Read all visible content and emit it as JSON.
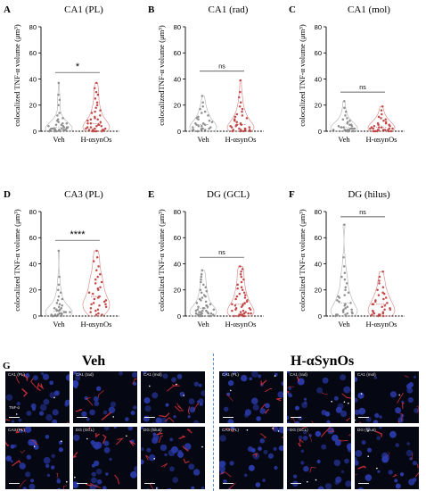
{
  "colors": {
    "veh": "#8f8f8f",
    "syn": "#c44848",
    "axis": "#000000",
    "divider": "#5b8fd0"
  },
  "chart_data": [
    {
      "type": "scatter",
      "panel_label": "A",
      "title": "CA1 (PL)",
      "ylabel": "colocalized TNF-α volume (μm³)",
      "ylim": [
        0,
        80
      ],
      "yticks": [
        0,
        20,
        40,
        60,
        80
      ],
      "categories": [
        "Veh",
        "H-αsynOs"
      ],
      "significance": "*",
      "series": [
        {
          "name": "Veh",
          "values": [
            37,
            28,
            24,
            20,
            14,
            12,
            10,
            9,
            8,
            7,
            6,
            6,
            5,
            5,
            4,
            4,
            3,
            3,
            3,
            2,
            2,
            2,
            2,
            2,
            1,
            1,
            1,
            1,
            1,
            1,
            1,
            1,
            0,
            0,
            0,
            0,
            0,
            0
          ]
        },
        {
          "name": "H-αsynOs",
          "values": [
            37,
            33,
            30,
            28,
            25,
            22,
            20,
            18,
            16,
            15,
            14,
            12,
            11,
            10,
            9,
            9,
            8,
            7,
            6,
            6,
            5,
            5,
            4,
            4,
            3,
            3,
            2,
            2,
            2,
            1,
            1,
            1,
            1,
            0,
            0,
            0,
            0,
            0
          ]
        }
      ]
    },
    {
      "type": "scatter",
      "panel_label": "B",
      "title": "CA1 (rad)",
      "ylabel": "colocalizedTNF-α volume (μm³)",
      "ylim": [
        0,
        80
      ],
      "yticks": [
        0,
        20,
        40,
        60,
        80
      ],
      "categories": [
        "Veh",
        "H-αsynOs"
      ],
      "significance": "ns",
      "series": [
        {
          "name": "Veh",
          "values": [
            27,
            22,
            19,
            17,
            15,
            14,
            12,
            11,
            10,
            9,
            8,
            7,
            6,
            6,
            5,
            5,
            4,
            4,
            3,
            3,
            2,
            2,
            2,
            1,
            1,
            1,
            1,
            0,
            0,
            0,
            0
          ]
        },
        {
          "name": "H-αsynOs",
          "values": [
            39,
            30,
            26,
            22,
            19,
            17,
            15,
            13,
            12,
            11,
            10,
            9,
            8,
            7,
            6,
            5,
            5,
            4,
            4,
            3,
            3,
            2,
            2,
            2,
            1,
            1,
            1,
            1,
            0,
            0,
            0,
            0
          ]
        }
      ]
    },
    {
      "type": "scatter",
      "panel_label": "C",
      "title": "CA1 (mol)",
      "ylabel": "colocalized TNF-α volume (μm³)",
      "ylim": [
        0,
        80
      ],
      "yticks": [
        0,
        20,
        40,
        60,
        80
      ],
      "categories": [
        "Veh",
        "H-αsynOs"
      ],
      "significance": "ns",
      "series": [
        {
          "name": "Veh",
          "values": [
            23,
            18,
            15,
            12,
            10,
            9,
            8,
            7,
            6,
            5,
            5,
            4,
            4,
            3,
            3,
            3,
            2,
            2,
            2,
            2,
            1,
            1,
            1,
            1,
            1,
            1,
            0,
            0,
            0,
            0,
            0,
            0
          ]
        },
        {
          "name": "H-αsynOs",
          "values": [
            19,
            16,
            13,
            11,
            10,
            9,
            8,
            7,
            6,
            6,
            5,
            5,
            4,
            4,
            3,
            3,
            3,
            2,
            2,
            2,
            2,
            1,
            1,
            1,
            1,
            1,
            0,
            0,
            0,
            0,
            0,
            0
          ]
        }
      ]
    },
    {
      "type": "scatter",
      "panel_label": "D",
      "title": "CA3 (PL)",
      "ylabel": "colocalized TNF-α volume (μm³)",
      "ylim": [
        0,
        80
      ],
      "yticks": [
        0,
        20,
        40,
        60,
        80
      ],
      "categories": [
        "Veh",
        "H-αsynOs"
      ],
      "significance": "****",
      "series": [
        {
          "name": "Veh",
          "values": [
            50,
            30,
            24,
            20,
            18,
            15,
            13,
            12,
            10,
            9,
            8,
            7,
            6,
            6,
            5,
            5,
            4,
            4,
            3,
            3,
            3,
            2,
            2,
            2,
            1,
            1,
            1,
            1,
            0,
            0,
            0,
            0,
            0
          ]
        },
        {
          "name": "H-αsynOs",
          "values": [
            50,
            45,
            42,
            38,
            35,
            32,
            30,
            28,
            26,
            25,
            22,
            21,
            20,
            18,
            17,
            15,
            14,
            13,
            12,
            11,
            10,
            9,
            9,
            8,
            7,
            6,
            5,
            4,
            3,
            2,
            1,
            1
          ]
        }
      ]
    },
    {
      "type": "scatter",
      "panel_label": "E",
      "title": "DG (GCL)",
      "ylabel": "colocalized TNF-α volume (μm³)",
      "ylim": [
        0,
        80
      ],
      "yticks": [
        0,
        20,
        40,
        60,
        80
      ],
      "categories": [
        "Veh",
        "H-αsynOs"
      ],
      "significance": "ns",
      "series": [
        {
          "name": "Veh",
          "values": [
            35,
            32,
            30,
            28,
            26,
            24,
            22,
            20,
            19,
            18,
            16,
            15,
            14,
            13,
            12,
            11,
            10,
            9,
            8,
            8,
            7,
            7,
            6,
            6,
            5,
            5,
            4,
            4,
            4,
            3,
            3,
            3,
            2,
            2,
            2,
            2,
            1,
            1,
            1,
            1,
            1,
            0,
            0,
            0,
            0,
            0
          ]
        },
        {
          "name": "H-αsynOs",
          "values": [
            38,
            36,
            34,
            32,
            30,
            28,
            26,
            24,
            22,
            21,
            20,
            18,
            17,
            16,
            15,
            14,
            13,
            12,
            11,
            10,
            9,
            9,
            8,
            8,
            7,
            6,
            6,
            5,
            5,
            4,
            4,
            3,
            3,
            2,
            2,
            2,
            1,
            1,
            1,
            1,
            0,
            0,
            0,
            0
          ]
        }
      ]
    },
    {
      "type": "scatter",
      "panel_label": "F",
      "title": "DG (hilus)",
      "ylabel": "colocalized TNF-α volume (μm³)",
      "ylim": [
        0,
        80
      ],
      "yticks": [
        0,
        20,
        40,
        60,
        80
      ],
      "categories": [
        "Veh",
        "H-αsynOs"
      ],
      "significance": "ns",
      "series": [
        {
          "name": "Veh",
          "values": [
            70,
            45,
            38,
            33,
            30,
            28,
            25,
            22,
            20,
            18,
            16,
            15,
            14,
            12,
            11,
            10,
            9,
            8,
            7,
            6,
            5,
            5,
            4,
            3,
            3,
            2,
            2,
            1,
            1,
            1,
            0,
            0
          ]
        },
        {
          "name": "H-αsynOs",
          "values": [
            34,
            30,
            27,
            25,
            22,
            20,
            18,
            17,
            16,
            14,
            13,
            12,
            11,
            10,
            9,
            9,
            8,
            7,
            6,
            5,
            5,
            4,
            3,
            3,
            2,
            2,
            1,
            1,
            1,
            0,
            0
          ]
        }
      ]
    }
  ],
  "panel_g": {
    "label": "G",
    "groups": [
      {
        "title": "Veh",
        "tiles": [
          {
            "label": "CA1 (PL)",
            "sub": "TNF-α"
          },
          {
            "label": "CA1 (rad)",
            "sub": ""
          },
          {
            "label": "CA1 (mol)",
            "sub": ""
          },
          {
            "label": "CA3 (PL)",
            "sub": ""
          },
          {
            "label": "DG (GCL)",
            "sub": ""
          },
          {
            "label": "DG (hilus)",
            "sub": ""
          }
        ]
      },
      {
        "title": "H-αSynOs",
        "tiles": [
          {
            "label": "CA1 (PL)",
            "sub": ""
          },
          {
            "label": "CA1 (rad)",
            "sub": ""
          },
          {
            "label": "CA1 (mol)",
            "sub": ""
          },
          {
            "label": "CA3 (PL)",
            "sub": ""
          },
          {
            "label": "DG (GCL)",
            "sub": ""
          },
          {
            "label": "DG (hilus)",
            "sub": ""
          }
        ]
      }
    ],
    "tile_corner_marks": {
      "7,4": "E"
    }
  }
}
